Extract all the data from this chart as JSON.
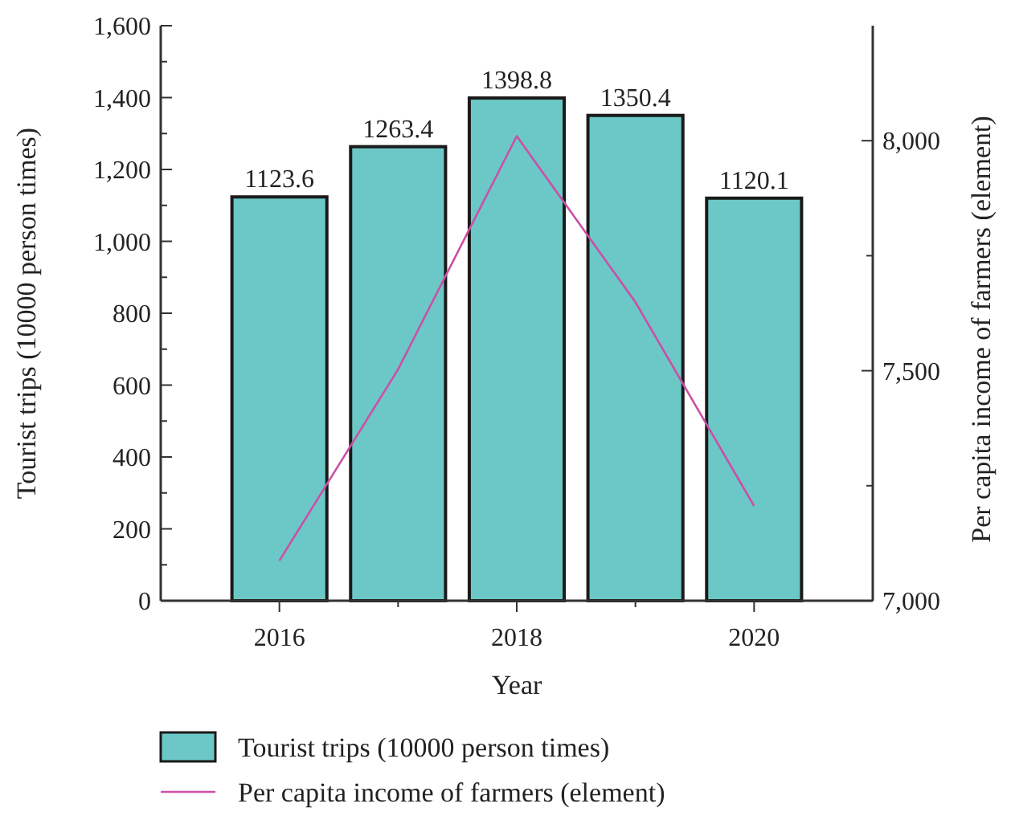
{
  "chart_data": {
    "type": "bar",
    "xlabel": "Year",
    "ylabel": "Tourist trips (10000 person times)",
    "y2label": "Per capita income of farmers (element)",
    "x": [
      2016,
      2017,
      2018,
      2019,
      2020
    ],
    "series": [
      {
        "name": "Tourist trips (10000 person times)",
        "color": "#6cc8c6",
        "values": [
          1123.6,
          1263.4,
          1398.8,
          1350.4,
          1120.1
        ],
        "value_labels": [
          "1123.6",
          "1263.4",
          "1398.8",
          "1350.4",
          "1120.1"
        ]
      },
      {
        "name": "Per capita income of farmers (element)",
        "type": "line",
        "axis": "y2",
        "color": "#cc4fa6",
        "values": [
          7087,
          7503,
          8010,
          7649,
          7206
        ]
      }
    ],
    "xlim": [
      2015,
      2021
    ],
    "xticks": [
      {
        "value": 2016,
        "label": "2016"
      },
      {
        "value": 2017,
        "label": null
      },
      {
        "value": 2018,
        "label": "2018"
      },
      {
        "value": 2019,
        "label": null
      },
      {
        "value": 2020,
        "label": "2020"
      }
    ],
    "ylim": [
      0,
      1600
    ],
    "yticks": [
      0,
      {
        "value": 100,
        "label": null
      },
      200,
      {
        "value": 300,
        "label": null
      },
      400,
      {
        "value": 500,
        "label": null
      },
      600,
      {
        "value": 700,
        "label": null
      },
      800,
      {
        "value": 900,
        "label": null
      },
      {
        "value": 1000,
        "label": "1,000"
      },
      {
        "value": 1100,
        "label": null
      },
      {
        "value": 1200,
        "label": "1,200"
      },
      {
        "value": 1300,
        "label": null
      },
      {
        "value": 1400,
        "label": "1,400"
      },
      {
        "value": 1500,
        "label": null
      },
      {
        "value": 1600,
        "label": "1,600"
      }
    ],
    "y2lim": [
      7000,
      8250
    ],
    "y2ticks": [
      {
        "value": 7000,
        "label": "7,000"
      },
      {
        "value": 7250,
        "label": null
      },
      {
        "value": 7500,
        "label": "7,500"
      },
      {
        "value": 7750,
        "label": null
      },
      {
        "value": 8000,
        "label": "8,000"
      }
    ],
    "legend": "bottom",
    "grid": false,
    "marker": "none",
    "line_style": "solid"
  }
}
